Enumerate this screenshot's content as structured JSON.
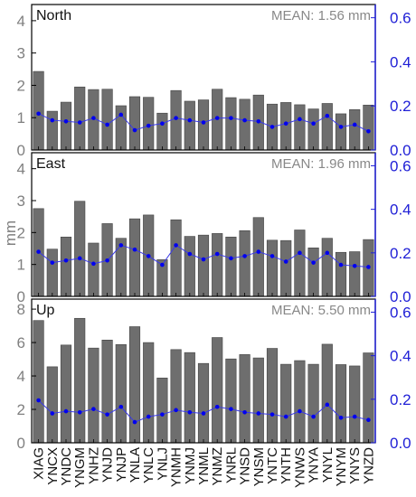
{
  "colors": {
    "bar": "#6e6e6e",
    "bar_edge": "#444444",
    "line": "#3a3ae6",
    "marker": "#0000ee",
    "right_axis": "#1f1fd6",
    "left_axis": "#808080"
  },
  "chart_data": {
    "type": "bar",
    "ylabel": "mm",
    "categories": [
      "XIAG",
      "YNCX",
      "YNDC",
      "YNGM",
      "YNHZ",
      "YNJD",
      "YNJP",
      "YNLA",
      "YNLC",
      "YNLJ",
      "YNMH",
      "YNMJ",
      "YNML",
      "YNMZ",
      "YNRL",
      "YNSD",
      "YNSM",
      "YNTC",
      "YNTH",
      "YNWS",
      "YNYA",
      "YNYL",
      "YNYM",
      "YNYS",
      "YNZD"
    ],
    "panels": [
      {
        "name": "North",
        "mean_label": "MEAN: 1.56 mm",
        "left_ylim": [
          0,
          4.5
        ],
        "left_ticks": [
          "0",
          "1",
          "2",
          "3",
          "4"
        ],
        "right_ylim": [
          0,
          0.66
        ],
        "right_ticks": [
          "0.0",
          "0.2",
          "0.4",
          "0.6"
        ],
        "bar_values": [
          2.43,
          1.2,
          1.48,
          1.95,
          1.87,
          1.88,
          1.37,
          1.65,
          1.63,
          1.14,
          1.84,
          1.51,
          1.55,
          1.88,
          1.62,
          1.57,
          1.7,
          1.42,
          1.47,
          1.4,
          1.27,
          1.44,
          1.12,
          1.25,
          1.39
        ],
        "line_values": [
          0.165,
          0.135,
          0.13,
          0.125,
          0.145,
          0.115,
          0.16,
          0.09,
          0.11,
          0.12,
          0.145,
          0.135,
          0.125,
          0.145,
          0.145,
          0.135,
          0.13,
          0.105,
          0.12,
          0.14,
          0.12,
          0.155,
          0.105,
          0.115,
          0.085
        ]
      },
      {
        "name": "East",
        "mean_label": "MEAN: 1.96 mm",
        "left_ylim": [
          0,
          4.5
        ],
        "left_ticks": [
          "0",
          "1",
          "2",
          "3",
          "4"
        ],
        "right_ylim": [
          0,
          0.66
        ],
        "right_ticks": [
          "0.0",
          "0.2",
          "0.4",
          "0.6"
        ],
        "bar_values": [
          2.75,
          1.48,
          1.86,
          2.98,
          1.67,
          2.28,
          1.82,
          2.43,
          2.55,
          1.15,
          2.4,
          1.88,
          1.92,
          1.97,
          1.86,
          2.06,
          2.47,
          1.76,
          1.75,
          2.08,
          1.52,
          1.82,
          1.38,
          1.4,
          1.78
        ],
        "line_values": [
          0.205,
          0.155,
          0.165,
          0.175,
          0.15,
          0.165,
          0.235,
          0.215,
          0.185,
          0.145,
          0.235,
          0.195,
          0.17,
          0.195,
          0.175,
          0.185,
          0.205,
          0.185,
          0.16,
          0.2,
          0.155,
          0.2,
          0.145,
          0.14,
          0.135
        ]
      },
      {
        "name": "Up",
        "mean_label": "MEAN: 5.50 mm",
        "left_ylim": [
          0,
          8.6
        ],
        "left_ticks": [
          "0",
          "2",
          "4",
          "6",
          "8"
        ],
        "right_ylim": [
          0,
          0.66
        ],
        "right_ticks": [
          "0.0",
          "0.2",
          "0.4",
          "0.6"
        ],
        "bar_values": [
          7.32,
          4.55,
          5.85,
          7.45,
          5.67,
          6.15,
          5.88,
          6.95,
          6.0,
          3.88,
          5.58,
          5.4,
          4.75,
          6.3,
          5.02,
          5.28,
          5.08,
          5.65,
          4.7,
          4.92,
          4.7,
          5.9,
          4.68,
          4.6,
          5.38
        ],
        "line_values": [
          0.195,
          0.135,
          0.145,
          0.14,
          0.155,
          0.13,
          0.165,
          0.095,
          0.12,
          0.13,
          0.15,
          0.14,
          0.135,
          0.165,
          0.155,
          0.14,
          0.135,
          0.13,
          0.12,
          0.145,
          0.12,
          0.175,
          0.115,
          0.12,
          0.105
        ]
      }
    ]
  }
}
